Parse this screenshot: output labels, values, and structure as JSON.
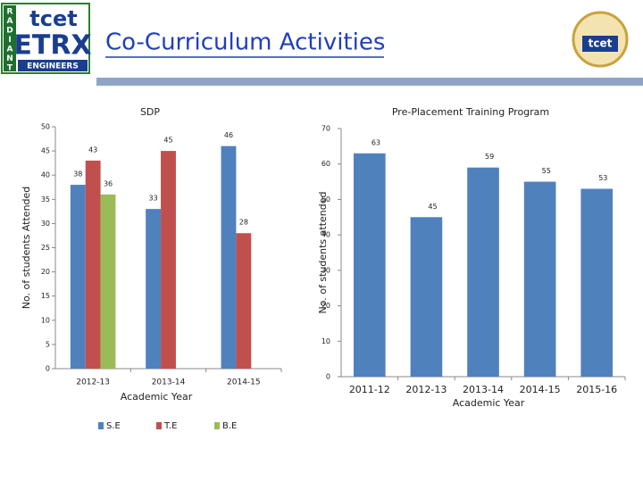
{
  "header": {
    "title": "Co-Curriculum Activities",
    "logo_left": {
      "brand": "tcet",
      "name": "ETRX",
      "tagline": "ENGINEERS",
      "side": [
        "R",
        "A",
        "D",
        "I",
        "A",
        "N",
        "T"
      ]
    },
    "logo_right": "tcet"
  },
  "chart_data": [
    {
      "type": "bar",
      "title": "SDP",
      "x_label": "Academic Year",
      "y_label": "No. of students Attended",
      "categories": [
        "2012-13",
        "2013-14",
        "2014-15"
      ],
      "series": [
        {
          "name": "S.E",
          "color": "#4f81bd",
          "values": [
            38,
            33,
            46
          ]
        },
        {
          "name": "T.E",
          "color": "#c0504d",
          "values": [
            43,
            45,
            28
          ]
        },
        {
          "name": "B.E",
          "color": "#9bbb59",
          "values": [
            36,
            null,
            null
          ]
        }
      ],
      "ylim": [
        0,
        50
      ],
      "yticks": [
        0,
        5,
        10,
        15,
        20,
        25,
        30,
        35,
        40,
        45,
        50
      ],
      "legend": "bottom"
    },
    {
      "type": "bar",
      "title": "Pre-Placement Training Program",
      "x_label": "Academic Year",
      "y_label": "No. of students attended",
      "categories": [
        "2011-12",
        "2012-13",
        "2013-14",
        "2014-15",
        "2015-16"
      ],
      "values": [
        63,
        45,
        59,
        55,
        53
      ],
      "color": "#4f81bd",
      "ylim": [
        0,
        70
      ],
      "yticks": [
        0,
        10,
        20,
        30,
        40,
        50,
        60,
        70
      ]
    }
  ]
}
